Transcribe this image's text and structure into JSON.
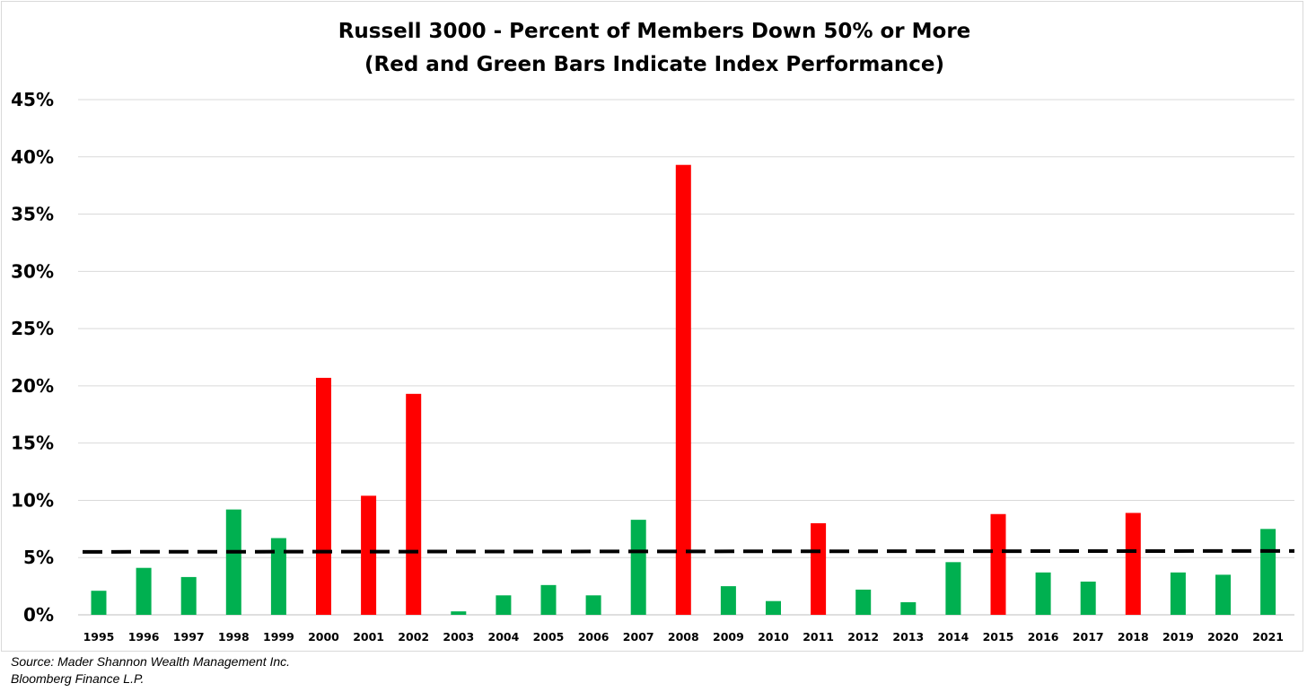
{
  "chart_data": {
    "type": "bar",
    "title": "Russell 3000 - Percent of Members Down 50% or More",
    "subtitle": "(Red and Green Bars Indicate Index Performance)",
    "xlabel": "",
    "ylabel": "",
    "ylim": [
      0,
      45
    ],
    "yticks": [
      "0%",
      "5%",
      "10%",
      "15%",
      "20%",
      "25%",
      "30%",
      "35%",
      "40%",
      "45%"
    ],
    "grid": true,
    "categories": [
      "1995",
      "1996",
      "1997",
      "1998",
      "1999",
      "2000",
      "2001",
      "2002",
      "2003",
      "2004",
      "2005",
      "2006",
      "2007",
      "2008",
      "2009",
      "2010",
      "2011",
      "2012",
      "2013",
      "2014",
      "2015",
      "2016",
      "2017",
      "2018",
      "2019",
      "2020",
      "2021"
    ],
    "values": [
      2.1,
      4.1,
      3.3,
      9.2,
      6.7,
      20.7,
      10.4,
      19.3,
      0.3,
      1.7,
      2.6,
      1.7,
      8.3,
      39.3,
      2.5,
      1.2,
      8.0,
      2.2,
      1.1,
      4.6,
      8.8,
      3.7,
      2.9,
      8.9,
      3.7,
      3.5,
      7.5
    ],
    "bar_colors": [
      "green",
      "green",
      "green",
      "green",
      "green",
      "red",
      "red",
      "red",
      "green",
      "green",
      "green",
      "green",
      "green",
      "red",
      "green",
      "green",
      "red",
      "green",
      "green",
      "green",
      "red",
      "green",
      "green",
      "red",
      "green",
      "green",
      "green"
    ],
    "average_line": {
      "value": 5.5,
      "style": "dashed",
      "color": "#000000"
    },
    "colors": {
      "green": "#00b050",
      "red": "#ff0000",
      "grid": "#d9d9d9"
    }
  },
  "source": {
    "line1": "Source: Mader Shannon Wealth Management Inc.",
    "line2": "Bloomberg Finance L.P."
  }
}
